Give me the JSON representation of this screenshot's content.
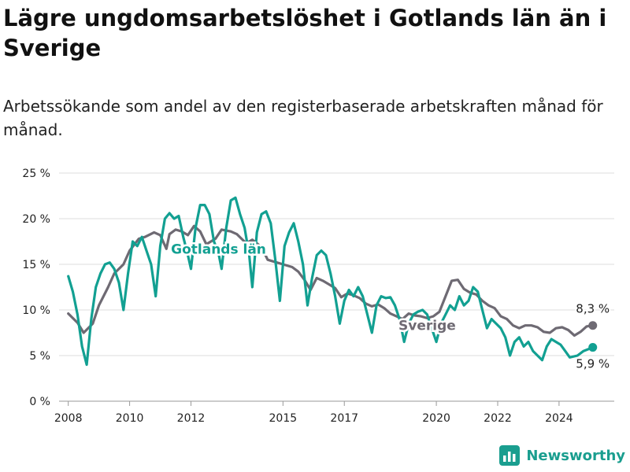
{
  "title": "Lägre ungdomsarbetslöshet i Gotlands län än i Sverige",
  "subtitle": "Arbetssökande som andel av den registerbaserade arbetskraften månad för månad.",
  "brand": {
    "name": "Newsworthy",
    "icon": "bar-chart-logo-icon",
    "color": "#1a9e8f"
  },
  "chart_data": {
    "type": "line",
    "ylim": [
      0,
      25
    ],
    "xlim": [
      2007.7,
      2025.8
    ],
    "yticks": [
      0,
      5,
      10,
      15,
      20,
      25
    ],
    "ytick_labels": [
      "0 %",
      "5 %",
      "10 %",
      "15 %",
      "20 %",
      "25 %"
    ],
    "xticks": [
      2008,
      2010,
      2012,
      2015,
      2017,
      2020,
      2022,
      2024
    ],
    "xtick_labels": [
      "2008",
      "2010",
      "2012",
      "2015",
      "2017",
      "2020",
      "2022",
      "2024"
    ],
    "grid": true,
    "series": [
      {
        "name": "Sverige",
        "color": "#6e6a73",
        "end_label": "8,3 %",
        "points": [
          [
            2008.0,
            9.6
          ],
          [
            2008.3,
            8.6
          ],
          [
            2008.5,
            7.5
          ],
          [
            2008.8,
            8.5
          ],
          [
            2009.0,
            10.5
          ],
          [
            2009.3,
            12.5
          ],
          [
            2009.5,
            14.0
          ],
          [
            2009.8,
            15.0
          ],
          [
            2010.0,
            16.5
          ],
          [
            2010.3,
            17.8
          ],
          [
            2010.5,
            18.0
          ],
          [
            2010.8,
            18.5
          ],
          [
            2011.0,
            18.2
          ],
          [
            2011.2,
            16.7
          ],
          [
            2011.3,
            18.3
          ],
          [
            2011.5,
            18.8
          ],
          [
            2011.7,
            18.6
          ],
          [
            2011.9,
            18.2
          ],
          [
            2012.1,
            19.2
          ],
          [
            2012.3,
            18.6
          ],
          [
            2012.5,
            17.2
          ],
          [
            2012.8,
            17.8
          ],
          [
            2013.0,
            18.8
          ],
          [
            2013.3,
            18.6
          ],
          [
            2013.5,
            18.3
          ],
          [
            2013.8,
            17.3
          ],
          [
            2014.0,
            17.7
          ],
          [
            2014.3,
            16.9
          ],
          [
            2014.5,
            15.5
          ],
          [
            2014.8,
            15.2
          ],
          [
            2015.0,
            15.0
          ],
          [
            2015.3,
            14.7
          ],
          [
            2015.5,
            14.2
          ],
          [
            2015.7,
            13.3
          ],
          [
            2015.9,
            12.2
          ],
          [
            2016.1,
            13.5
          ],
          [
            2016.3,
            13.2
          ],
          [
            2016.5,
            12.8
          ],
          [
            2016.7,
            12.4
          ],
          [
            2016.9,
            11.4
          ],
          [
            2017.1,
            11.8
          ],
          [
            2017.3,
            11.6
          ],
          [
            2017.5,
            11.3
          ],
          [
            2017.7,
            10.7
          ],
          [
            2017.9,
            10.4
          ],
          [
            2018.1,
            10.6
          ],
          [
            2018.3,
            10.2
          ],
          [
            2018.5,
            9.6
          ],
          [
            2018.7,
            9.3
          ],
          [
            2018.9,
            9.0
          ],
          [
            2019.1,
            9.6
          ],
          [
            2019.3,
            9.4
          ],
          [
            2019.5,
            9.3
          ],
          [
            2019.7,
            9.1
          ],
          [
            2019.9,
            9.3
          ],
          [
            2020.1,
            9.8
          ],
          [
            2020.3,
            11.5
          ],
          [
            2020.5,
            13.2
          ],
          [
            2020.7,
            13.3
          ],
          [
            2020.9,
            12.3
          ],
          [
            2021.1,
            11.9
          ],
          [
            2021.3,
            11.7
          ],
          [
            2021.5,
            11.0
          ],
          [
            2021.7,
            10.5
          ],
          [
            2021.9,
            10.2
          ],
          [
            2022.1,
            9.3
          ],
          [
            2022.3,
            9.0
          ],
          [
            2022.5,
            8.3
          ],
          [
            2022.7,
            8.0
          ],
          [
            2022.9,
            8.3
          ],
          [
            2023.1,
            8.3
          ],
          [
            2023.3,
            8.1
          ],
          [
            2023.5,
            7.6
          ],
          [
            2023.7,
            7.5
          ],
          [
            2023.9,
            8.0
          ],
          [
            2024.1,
            8.1
          ],
          [
            2024.3,
            7.8
          ],
          [
            2024.5,
            7.2
          ],
          [
            2024.7,
            7.6
          ],
          [
            2024.9,
            8.2
          ],
          [
            2025.1,
            8.3
          ]
        ]
      },
      {
        "name": "Gotlands län",
        "color": "#12a092",
        "end_label": "5,9 %",
        "points": [
          [
            2008.0,
            13.7
          ],
          [
            2008.15,
            12.0
          ],
          [
            2008.3,
            9.5
          ],
          [
            2008.45,
            6.0
          ],
          [
            2008.6,
            4.0
          ],
          [
            2008.75,
            9.0
          ],
          [
            2008.9,
            12.5
          ],
          [
            2009.05,
            14.0
          ],
          [
            2009.2,
            15.0
          ],
          [
            2009.35,
            15.2
          ],
          [
            2009.5,
            14.5
          ],
          [
            2009.65,
            13.0
          ],
          [
            2009.8,
            10.0
          ],
          [
            2009.95,
            14.0
          ],
          [
            2010.1,
            17.5
          ],
          [
            2010.25,
            17.0
          ],
          [
            2010.4,
            18.0
          ],
          [
            2010.55,
            16.5
          ],
          [
            2010.7,
            15.0
          ],
          [
            2010.85,
            11.5
          ],
          [
            2011.0,
            17.0
          ],
          [
            2011.15,
            20.0
          ],
          [
            2011.3,
            20.6
          ],
          [
            2011.45,
            20.0
          ],
          [
            2011.6,
            20.3
          ],
          [
            2011.75,
            18.0
          ],
          [
            2011.9,
            16.0
          ],
          [
            2012.0,
            14.5
          ],
          [
            2012.15,
            19.0
          ],
          [
            2012.3,
            21.5
          ],
          [
            2012.45,
            21.5
          ],
          [
            2012.6,
            20.5
          ],
          [
            2012.75,
            17.5
          ],
          [
            2012.9,
            16.2
          ],
          [
            2013.0,
            14.5
          ],
          [
            2013.15,
            19.0
          ],
          [
            2013.3,
            22.0
          ],
          [
            2013.45,
            22.3
          ],
          [
            2013.6,
            20.5
          ],
          [
            2013.75,
            19.0
          ],
          [
            2013.9,
            16.0
          ],
          [
            2014.0,
            12.5
          ],
          [
            2014.15,
            18.5
          ],
          [
            2014.3,
            20.5
          ],
          [
            2014.45,
            20.8
          ],
          [
            2014.6,
            19.5
          ],
          [
            2014.75,
            15.5
          ],
          [
            2014.9,
            11.0
          ],
          [
            2015.05,
            17.0
          ],
          [
            2015.2,
            18.5
          ],
          [
            2015.35,
            19.5
          ],
          [
            2015.5,
            17.5
          ],
          [
            2015.65,
            15.0
          ],
          [
            2015.8,
            10.5
          ],
          [
            2015.95,
            13.5
          ],
          [
            2016.1,
            16.0
          ],
          [
            2016.25,
            16.5
          ],
          [
            2016.4,
            16.0
          ],
          [
            2016.55,
            14.0
          ],
          [
            2016.7,
            11.5
          ],
          [
            2016.85,
            8.5
          ],
          [
            2017.0,
            11.0
          ],
          [
            2017.15,
            12.2
          ],
          [
            2017.3,
            11.5
          ],
          [
            2017.45,
            12.5
          ],
          [
            2017.6,
            11.5
          ],
          [
            2017.75,
            9.5
          ],
          [
            2017.9,
            7.5
          ],
          [
            2018.05,
            10.5
          ],
          [
            2018.2,
            11.5
          ],
          [
            2018.35,
            11.3
          ],
          [
            2018.5,
            11.4
          ],
          [
            2018.65,
            10.5
          ],
          [
            2018.8,
            9.0
          ],
          [
            2018.95,
            6.5
          ],
          [
            2019.1,
            8.5
          ],
          [
            2019.25,
            9.5
          ],
          [
            2019.4,
            9.8
          ],
          [
            2019.55,
            10.0
          ],
          [
            2019.7,
            9.5
          ],
          [
            2019.85,
            8.0
          ],
          [
            2020.0,
            6.5
          ],
          [
            2020.15,
            8.5
          ],
          [
            2020.3,
            9.5
          ],
          [
            2020.45,
            10.5
          ],
          [
            2020.6,
            10.0
          ],
          [
            2020.75,
            11.5
          ],
          [
            2020.9,
            10.5
          ],
          [
            2021.05,
            11.0
          ],
          [
            2021.2,
            12.5
          ],
          [
            2021.35,
            12.0
          ],
          [
            2021.5,
            10.0
          ],
          [
            2021.65,
            8.0
          ],
          [
            2021.8,
            9.0
          ],
          [
            2021.95,
            8.5
          ],
          [
            2022.1,
            8.0
          ],
          [
            2022.25,
            7.0
          ],
          [
            2022.4,
            5.0
          ],
          [
            2022.55,
            6.5
          ],
          [
            2022.7,
            7.0
          ],
          [
            2022.85,
            6.0
          ],
          [
            2023.0,
            6.5
          ],
          [
            2023.15,
            5.5
          ],
          [
            2023.3,
            5.0
          ],
          [
            2023.45,
            4.5
          ],
          [
            2023.6,
            6.0
          ],
          [
            2023.75,
            6.8
          ],
          [
            2023.9,
            6.5
          ],
          [
            2024.05,
            6.2
          ],
          [
            2024.2,
            5.5
          ],
          [
            2024.35,
            4.8
          ],
          [
            2024.6,
            5.0
          ],
          [
            2024.8,
            5.5
          ],
          [
            2025.1,
            5.9
          ]
        ]
      }
    ]
  }
}
